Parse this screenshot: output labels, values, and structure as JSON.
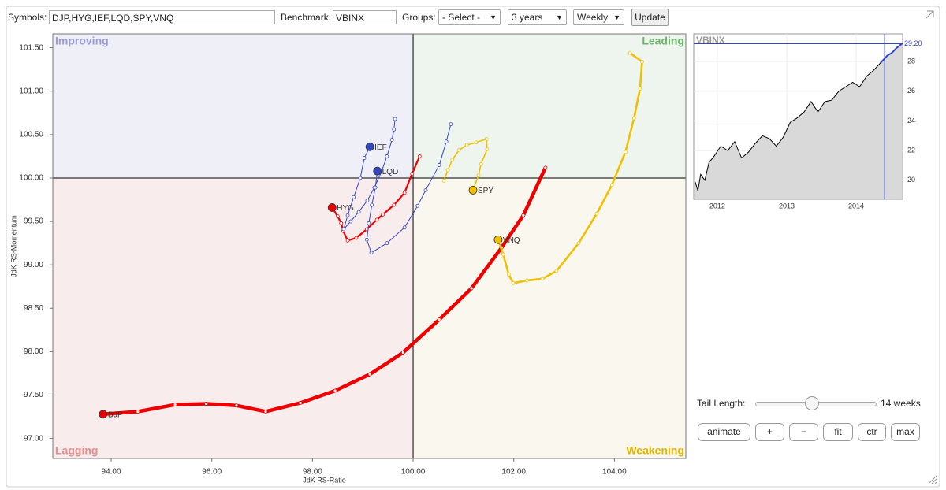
{
  "toolbar": {
    "symbols_label": "Symbols:",
    "symbols": "DJP,HYG,IEF,LQD,SPY,VNQ",
    "benchmark_label": "Benchmark:",
    "benchmark": "VBINX",
    "groups_label": "Groups:",
    "groups": "- Select -",
    "period": "3 years",
    "frequency": "Weekly",
    "update": "Update"
  },
  "chart_data": [
    {
      "type": "line",
      "x_label": "JdK RS-Ratio",
      "y_label": "JdK RS-Momentum",
      "xlim": [
        92.84,
        105.42
      ],
      "ylim": [
        96.77,
        101.66
      ],
      "xticks": [
        {
          "value": 94,
          "label": "94.00"
        },
        {
          "value": 96,
          "label": "96.00"
        },
        {
          "value": 98,
          "label": "98.00"
        },
        {
          "value": 100,
          "label": "100.00"
        },
        {
          "value": 102,
          "label": "102.00"
        },
        {
          "value": 104,
          "label": "104.00"
        }
      ],
      "yticks": [
        {
          "value": 97,
          "label": "97.00"
        },
        {
          "value": 97.5,
          "label": "97.50"
        },
        {
          "value": 98,
          "label": "98.00"
        },
        {
          "value": 98.5,
          "label": "98.50"
        },
        {
          "value": 99,
          "label": "99.00"
        },
        {
          "value": 99.5,
          "label": "99.50"
        },
        {
          "value": 100,
          "label": "100.00"
        },
        {
          "value": 100.5,
          "label": "100.50"
        },
        {
          "value": 101,
          "label": "101.00"
        },
        {
          "value": 101.5,
          "label": "101.50"
        }
      ],
      "center": [
        100,
        100
      ],
      "quadrants": [
        {
          "label": "Improving",
          "color": "#9a9ad8",
          "fill": "#efeff8"
        },
        {
          "label": "Leading",
          "color": "#6ab46a",
          "fill": "#eef5ee"
        },
        {
          "label": "Lagging",
          "color": "#e88c8c",
          "fill": "#f9eced"
        },
        {
          "label": "Weakening",
          "color": "#e2b400",
          "fill": "#faf8ee"
        }
      ],
      "series": [
        {
          "name": "DJP",
          "color": "#ee0000",
          "x": [
            102.63,
            102.19,
            101.76,
            101.16,
            100.52,
            99.8,
            99.14,
            98.45,
            97.76,
            97.07,
            96.49,
            95.89,
            95.27,
            94.53,
            93.84
          ],
          "values": [
            100.12,
            99.57,
            99.2,
            98.73,
            98.37,
            97.99,
            97.74,
            97.55,
            97.41,
            97.31,
            97.38,
            97.4,
            97.39,
            97.31,
            97.28
          ]
        },
        {
          "name": "HYG",
          "color": "#ee0000",
          "x": [
            100.13,
            99.98,
            99.83,
            99.62,
            99.4,
            99.28,
            99.08,
            98.87,
            98.7,
            98.61,
            98.57,
            98.5,
            98.39
          ],
          "values": [
            100.25,
            100.05,
            99.83,
            99.69,
            99.58,
            99.52,
            99.41,
            99.31,
            99.28,
            99.39,
            99.48,
            99.56,
            99.66
          ]
        },
        {
          "name": "IEF",
          "color": "#3346c8",
          "x": [
            99.64,
            99.62,
            99.58,
            99.48,
            99.37,
            99.23,
            99.09,
            98.92,
            98.76,
            98.62,
            98.7,
            98.82,
            98.95,
            99.03,
            99.14
          ],
          "values": [
            100.68,
            100.56,
            100.44,
            100.25,
            100.07,
            99.89,
            99.74,
            99.61,
            99.5,
            99.41,
            99.57,
            99.78,
            100.0,
            100.23,
            100.36
          ]
        },
        {
          "name": "LQD",
          "color": "#3346c8",
          "x": [
            100.75,
            100.66,
            100.52,
            100.25,
            100.09,
            99.83,
            99.48,
            99.17,
            99.08,
            99.12,
            99.18,
            99.25,
            99.29
          ],
          "values": [
            100.62,
            100.42,
            100.15,
            99.86,
            99.68,
            99.43,
            99.25,
            99.14,
            99.29,
            99.48,
            99.69,
            99.89,
            100.08
          ]
        },
        {
          "name": "SPY",
          "color": "#f0c000",
          "x": [
            100.61,
            100.69,
            100.78,
            100.91,
            101.07,
            101.25,
            101.46,
            101.47,
            101.35,
            101.3,
            101.19
          ],
          "values": [
            99.97,
            100.09,
            100.21,
            100.32,
            100.38,
            100.41,
            100.45,
            100.33,
            100.16,
            100.03,
            99.86
          ]
        },
        {
          "name": "VNQ",
          "color": "#f0c000",
          "x": [
            104.31,
            104.55,
            104.51,
            104.39,
            104.22,
            103.95,
            103.65,
            103.29,
            102.85,
            102.57,
            102.26,
            101.99,
            101.9,
            101.79,
            101.69
          ],
          "values": [
            101.44,
            101.34,
            101.03,
            100.69,
            100.3,
            99.92,
            99.59,
            99.25,
            98.93,
            98.84,
            98.82,
            98.79,
            98.89,
            99.12,
            99.29
          ]
        }
      ]
    },
    {
      "type": "area",
      "color": "#000000",
      "highlight_color": "#3346c8",
      "fill": "#d9d9d9",
      "xlim": [
        2011.66,
        2014.67
      ],
      "ylim": [
        18.72,
        29.86
      ],
      "xticks": [
        2012,
        2013,
        2014
      ],
      "yticks": [
        20,
        22,
        24,
        26,
        28
      ],
      "highlight_from": 2014.41,
      "last_value": {
        "value": 29.2,
        "label": "29.20"
      },
      "x": [
        2011.68,
        2011.72,
        2011.76,
        2011.82,
        2011.88,
        2011.95,
        2012.05,
        2012.15,
        2012.25,
        2012.35,
        2012.45,
        2012.55,
        2012.65,
        2012.75,
        2012.85,
        2012.95,
        2013.05,
        2013.15,
        2013.25,
        2013.35,
        2013.45,
        2013.55,
        2013.65,
        2013.75,
        2013.85,
        2013.95,
        2014.05,
        2014.15,
        2014.25,
        2014.35,
        2014.45,
        2014.52,
        2014.58,
        2014.66
      ],
      "values": [
        19.9,
        19.3,
        20.4,
        20.0,
        21.2,
        21.6,
        22.3,
        22.0,
        22.6,
        21.5,
        21.9,
        22.5,
        23.0,
        22.8,
        22.3,
        22.9,
        23.9,
        24.2,
        24.6,
        25.3,
        24.6,
        25.3,
        25.4,
        26.0,
        26.3,
        26.6,
        26.3,
        27.0,
        27.4,
        27.9,
        28.4,
        28.6,
        28.9,
        29.2
      ]
    }
  ],
  "controls": {
    "tail_label": "Tail Length:",
    "tail_value": "14 weeks",
    "buttons": [
      "animate",
      "+",
      "−",
      "fit",
      "ctr",
      "max"
    ]
  }
}
